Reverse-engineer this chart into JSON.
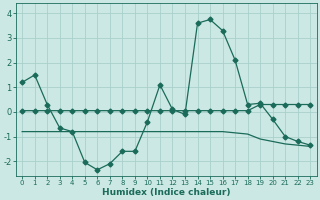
{
  "xlabel": "Humidex (Indice chaleur)",
  "background_color": "#cce8e4",
  "grid_color": "#aacfca",
  "line_color": "#1a6b5a",
  "xlim": [
    -0.5,
    23.5
  ],
  "ylim": [
    -2.6,
    4.4
  ],
  "yticks": [
    -2,
    -1,
    0,
    1,
    2,
    3,
    4
  ],
  "xticks": [
    0,
    1,
    2,
    3,
    4,
    5,
    6,
    7,
    8,
    9,
    10,
    11,
    12,
    13,
    14,
    15,
    16,
    17,
    18,
    19,
    20,
    21,
    22,
    23
  ],
  "series1_x": [
    0,
    1,
    2,
    3,
    4,
    5,
    6,
    7,
    8,
    9,
    10,
    11,
    12,
    13,
    14,
    15,
    16,
    17,
    18,
    19,
    20,
    21,
    22,
    23
  ],
  "series1_y": [
    1.2,
    1.5,
    0.3,
    -0.65,
    -0.8,
    -2.05,
    -2.35,
    -2.1,
    -1.6,
    -1.6,
    -0.4,
    1.1,
    0.1,
    -0.1,
    3.6,
    3.75,
    3.3,
    2.1,
    0.3,
    0.35,
    -0.3,
    -1.0,
    -1.2,
    -1.35
  ],
  "series2_x": [
    0,
    1,
    2,
    3,
    4,
    5,
    6,
    7,
    8,
    9,
    10,
    11,
    12,
    13,
    14,
    15,
    16,
    17,
    18,
    19,
    20,
    21,
    22,
    23
  ],
  "series2_y": [
    0.05,
    0.05,
    0.05,
    0.05,
    0.05,
    0.05,
    0.05,
    0.05,
    0.05,
    0.05,
    0.05,
    0.05,
    0.05,
    0.05,
    0.05,
    0.05,
    0.05,
    0.05,
    0.05,
    0.3,
    0.3,
    0.3,
    0.3,
    0.3
  ],
  "series3_x": [
    0,
    1,
    2,
    3,
    4,
    5,
    6,
    7,
    8,
    9,
    10,
    11,
    12,
    13,
    14,
    15,
    16,
    17,
    18,
    19,
    20,
    21,
    22,
    23
  ],
  "series3_y": [
    -0.8,
    -0.8,
    -0.8,
    -0.8,
    -0.8,
    -0.8,
    -0.8,
    -0.8,
    -0.8,
    -0.8,
    -0.8,
    -0.8,
    -0.8,
    -0.8,
    -0.8,
    -0.8,
    -0.8,
    -0.85,
    -0.9,
    -1.1,
    -1.2,
    -1.3,
    -1.35,
    -1.4
  ],
  "markersize": 2.5
}
